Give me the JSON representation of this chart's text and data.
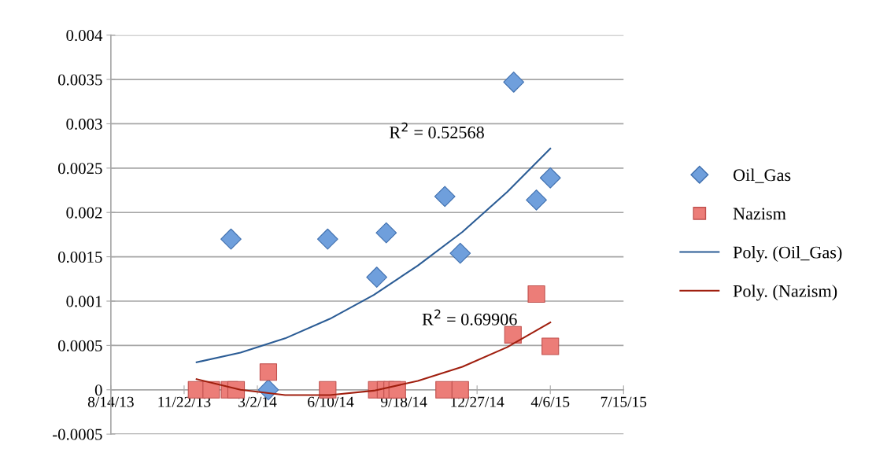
{
  "chart_data": {
    "type": "scatter",
    "xlim": [
      "2013-08-14",
      "2015-07-15"
    ],
    "xticks": [
      {
        "value": "2013-08-14",
        "label": "8/14/13"
      },
      {
        "value": "2013-11-22",
        "label": "11/22/13"
      },
      {
        "value": "2014-03-02",
        "label": "3/2/14"
      },
      {
        "value": "2014-06-10",
        "label": "6/10/14"
      },
      {
        "value": "2014-09-18",
        "label": "9/18/14"
      },
      {
        "value": "2014-12-27",
        "label": "12/27/14"
      },
      {
        "value": "2015-04-06",
        "label": "4/6/15"
      },
      {
        "value": "2015-07-15",
        "label": "7/15/15"
      }
    ],
    "ylim": [
      -0.0005,
      0.004
    ],
    "yticks": [
      -0.0005,
      0,
      0.0005,
      0.001,
      0.0015,
      0.002,
      0.0025,
      0.003,
      0.0035,
      0.004
    ],
    "grid": "y",
    "legend": "right",
    "series": [
      {
        "name": "Oil_Gas",
        "marker": "diamond",
        "color": "#6f9fdc",
        "x": [
          "2014-01-25",
          "2014-03-17",
          "2014-06-06",
          "2014-08-12",
          "2014-08-25",
          "2014-11-13",
          "2014-12-04",
          "2015-02-15",
          "2015-03-18",
          "2015-04-06"
        ],
        "values": [
          0.0017,
          0,
          0.0017,
          0.00127,
          0.00177,
          0.00218,
          0.00154,
          0.00347,
          0.00214,
          0.00239
        ]
      },
      {
        "name": "Nazism",
        "marker": "square",
        "color": "#ec7d78",
        "x": [
          "2013-12-09",
          "2013-12-29",
          "2014-01-23",
          "2014-02-01",
          "2014-03-17",
          "2014-06-06",
          "2014-08-12",
          "2014-08-24",
          "2014-09-02",
          "2014-09-09",
          "2014-11-12",
          "2014-12-04",
          "2015-02-14",
          "2015-03-18",
          "2015-04-06"
        ],
        "values": [
          0,
          0,
          0,
          0,
          0.0002,
          0,
          0,
          0,
          0,
          0,
          0,
          0,
          0.00062,
          0.00108,
          0.00049
        ]
      },
      {
        "name": "Poly. (Oil_Gas)",
        "type": "line",
        "marker": "none",
        "line_style": "solid",
        "color": "#2b5c95",
        "x": [
          "2013-12-09",
          "2014-02-07",
          "2014-04-09",
          "2014-06-09",
          "2014-08-08",
          "2014-10-07",
          "2014-12-07",
          "2015-02-06",
          "2015-04-06"
        ],
        "values": [
          0.00031,
          0.00042,
          0.00058,
          0.0008,
          0.00107,
          0.0014,
          0.00178,
          0.00223,
          0.00272
        ]
      },
      {
        "name": "Poly. (Nazism)",
        "type": "line",
        "marker": "none",
        "line_style": "solid",
        "color": "#a01f0f",
        "x": [
          "2013-12-09",
          "2014-02-07",
          "2014-04-09",
          "2014-06-09",
          "2014-08-08",
          "2014-10-07",
          "2014-12-07",
          "2015-02-06",
          "2015-04-06"
        ],
        "values": [
          0.00012,
          0,
          -6e-05,
          -6e-05,
          -1e-05,
          0.0001,
          0.00026,
          0.00048,
          0.00076
        ]
      }
    ],
    "annotations": [
      "R$^{2}$ = 0.52568",
      "R$^{2}$ = 0.69906"
    ]
  }
}
